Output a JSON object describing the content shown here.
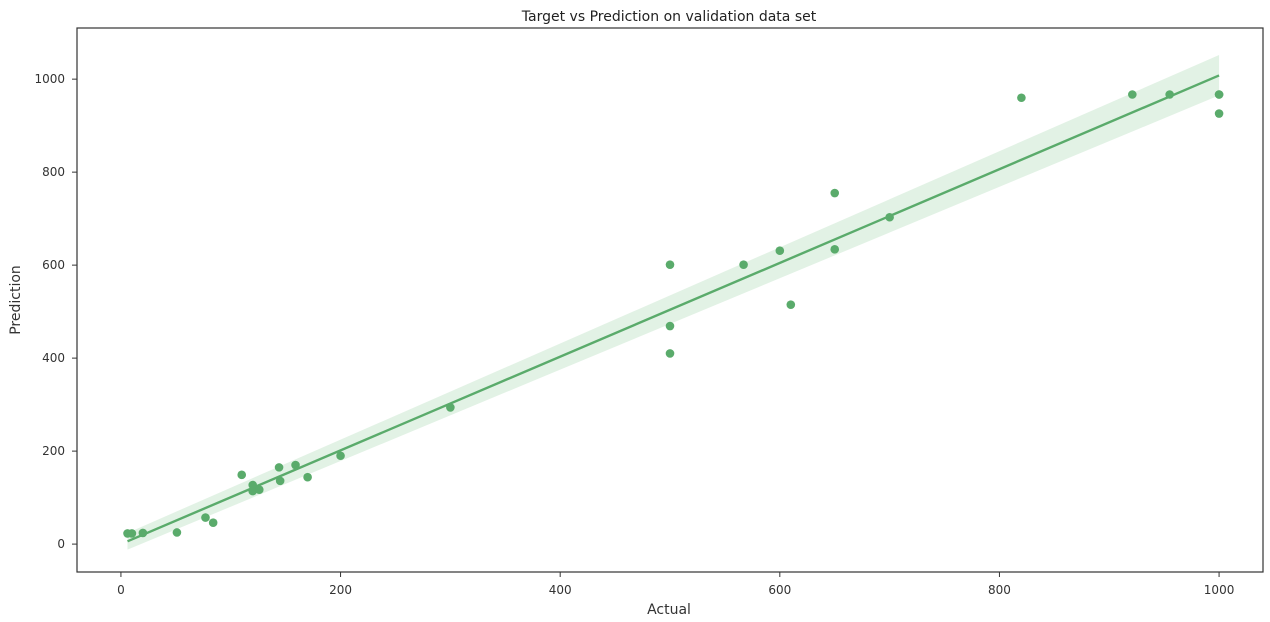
{
  "chart_data": {
    "type": "scatter",
    "title": "Target vs Prediction on validation data set",
    "xlabel": "Actual",
    "ylabel": "Prediction",
    "xlim": [
      -40,
      1040
    ],
    "ylim": [
      -60,
      1110
    ],
    "xticks": [
      0,
      200,
      400,
      600,
      800,
      1000
    ],
    "yticks": [
      0,
      200,
      400,
      600,
      800,
      1000
    ],
    "grid": false,
    "colors": {
      "point": "#5aab6b",
      "line": "#5aab6b",
      "band": "#cfe9d4",
      "axis": "#333333"
    },
    "points": [
      {
        "x": 6,
        "y": 23
      },
      {
        "x": 10,
        "y": 23
      },
      {
        "x": 20,
        "y": 24
      },
      {
        "x": 51,
        "y": 25
      },
      {
        "x": 77,
        "y": 57
      },
      {
        "x": 84,
        "y": 46
      },
      {
        "x": 110,
        "y": 149
      },
      {
        "x": 120,
        "y": 127
      },
      {
        "x": 120,
        "y": 114
      },
      {
        "x": 126,
        "y": 117
      },
      {
        "x": 144,
        "y": 165
      },
      {
        "x": 145,
        "y": 136
      },
      {
        "x": 159,
        "y": 170
      },
      {
        "x": 170,
        "y": 144
      },
      {
        "x": 200,
        "y": 190
      },
      {
        "x": 300,
        "y": 294
      },
      {
        "x": 500,
        "y": 601
      },
      {
        "x": 500,
        "y": 469
      },
      {
        "x": 500,
        "y": 410
      },
      {
        "x": 567,
        "y": 601
      },
      {
        "x": 600,
        "y": 631
      },
      {
        "x": 610,
        "y": 515
      },
      {
        "x": 650,
        "y": 755
      },
      {
        "x": 650,
        "y": 634
      },
      {
        "x": 700,
        "y": 703
      },
      {
        "x": 820,
        "y": 960
      },
      {
        "x": 921,
        "y": 967
      },
      {
        "x": 955,
        "y": 967
      },
      {
        "x": 1000,
        "y": 967
      },
      {
        "x": 1000,
        "y": 967
      },
      {
        "x": 1000,
        "y": 926
      }
    ],
    "regression": {
      "x": [
        6,
        1000
      ],
      "y": [
        6,
        1008
      ],
      "ci_lower": [
        -12,
        965
      ],
      "ci_upper": [
        24,
        1052
      ]
    }
  }
}
